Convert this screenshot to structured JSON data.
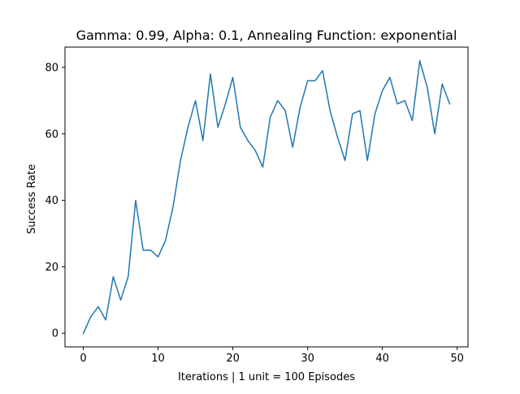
{
  "chart_data": {
    "type": "line",
    "title": "Gamma: 0.99, Alpha: 0.1, Annealing Function: exponential",
    "xlabel": "Iterations | 1 unit = 100 Episodes",
    "ylabel": "Success Rate",
    "xlim": [
      -2.45,
      51.45
    ],
    "ylim": [
      -4.1,
      86.1
    ],
    "xticks": [
      0,
      10,
      20,
      30,
      40,
      50
    ],
    "yticks": [
      0,
      20,
      40,
      60,
      80
    ],
    "grid": false,
    "series": [
      {
        "color": "#1f77b4",
        "x": [
          0,
          1,
          2,
          3,
          4,
          5,
          6,
          7,
          8,
          9,
          10,
          11,
          12,
          13,
          14,
          15,
          16,
          17,
          18,
          19,
          20,
          21,
          22,
          23,
          24,
          25,
          26,
          27,
          28,
          29,
          30,
          31,
          32,
          33,
          34,
          35,
          36,
          37,
          38,
          39,
          40,
          41,
          42,
          43,
          44,
          45,
          46,
          47,
          48,
          49
        ],
        "y": [
          0,
          5,
          8,
          4,
          17,
          10,
          17,
          40,
          25,
          25,
          23,
          28,
          38,
          52,
          62,
          70,
          58,
          78,
          62,
          69,
          77,
          62,
          58,
          55,
          50,
          65,
          70,
          67,
          56,
          68,
          76,
          76,
          79,
          67,
          59,
          52,
          66,
          67,
          52,
          66,
          73,
          77,
          69,
          70,
          64,
          82,
          74,
          60,
          75,
          69
        ]
      }
    ]
  }
}
